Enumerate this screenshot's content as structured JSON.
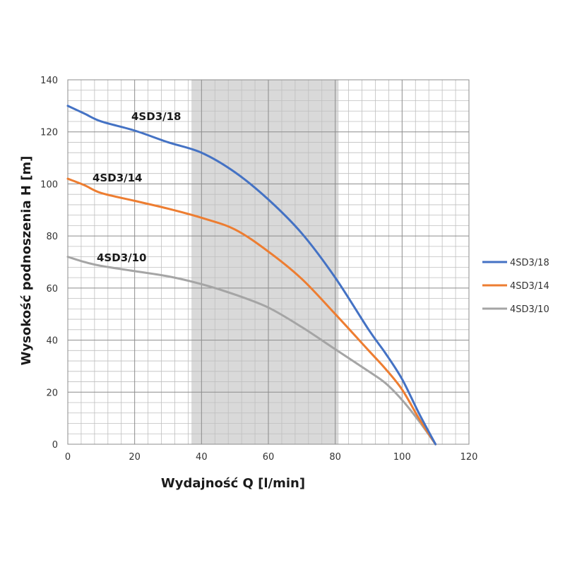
{
  "chart_data": {
    "type": "line",
    "title": "",
    "xlabel": "Wydajność Q [l/min]",
    "ylabel": "Wysokość podnoszenia H [m]",
    "xlim": [
      0,
      120
    ],
    "ylim": [
      0,
      140
    ],
    "xticks": [
      "0",
      "20",
      "40",
      "60",
      "80",
      "100",
      "120"
    ],
    "yticks": [
      "0",
      "20",
      "40",
      "60",
      "80",
      "100",
      "120",
      "140"
    ],
    "grid": true,
    "highlight_range_x": [
      37,
      81
    ],
    "legend_position": "right",
    "series": [
      {
        "name": "4SD3/18",
        "color": "#4472C4",
        "label": "4SD3/18",
        "x": [
          0,
          5,
          10,
          20,
          30,
          40,
          50,
          60,
          70,
          80,
          90,
          95,
          100,
          105,
          110
        ],
        "y": [
          130,
          127,
          124,
          120.5,
          116,
          112,
          104.5,
          94,
          81,
          64,
          44,
          35,
          25,
          12,
          0
        ]
      },
      {
        "name": "4SD3/14",
        "color": "#ED7D31",
        "label": "4SD3/14",
        "x": [
          0,
          5,
          10,
          20,
          30,
          40,
          50,
          60,
          70,
          80,
          90,
          95,
          100,
          105,
          110
        ],
        "y": [
          102,
          99.5,
          96.5,
          93.5,
          90.5,
          87,
          82.5,
          74,
          63.5,
          50,
          36,
          29,
          21,
          10,
          0
        ]
      },
      {
        "name": "4SD3/10",
        "color": "#A5A5A5",
        "label": "4SD3/10",
        "x": [
          0,
          5,
          10,
          20,
          30,
          40,
          50,
          60,
          70,
          80,
          90,
          95,
          100,
          105,
          110
        ],
        "y": [
          72,
          70,
          68.5,
          66.5,
          64.5,
          61.5,
          57.5,
          52.5,
          45,
          36.5,
          28,
          23.5,
          17,
          9,
          0
        ]
      }
    ]
  }
}
